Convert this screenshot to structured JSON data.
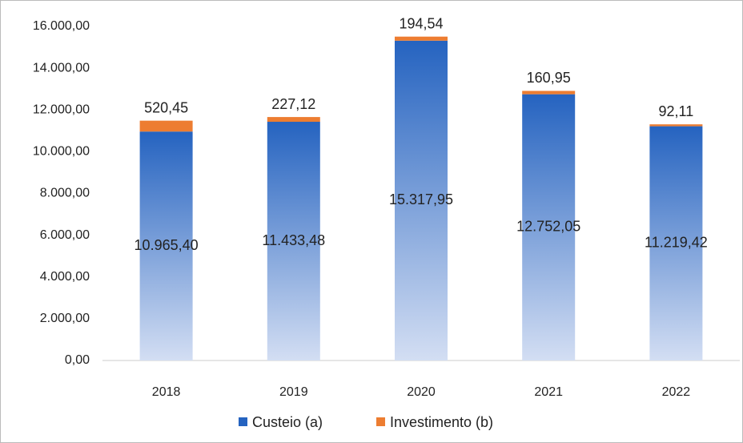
{
  "chart_data": {
    "type": "stacked_bar",
    "categories": [
      "2018",
      "2019",
      "2020",
      "2021",
      "2022"
    ],
    "series": [
      {
        "name": "Custeio (a)",
        "color": "#2563c0",
        "values": [
          10965.4,
          11433.48,
          15317.95,
          12752.05,
          11219.42
        ],
        "value_labels": [
          "10.965,40",
          "11.433,48",
          "15.317,95",
          "12.752,05",
          "11.219,42"
        ]
      },
      {
        "name": "Investimento (b)",
        "color": "#ed7d31",
        "values": [
          520.45,
          227.12,
          194.54,
          160.95,
          92.11
        ],
        "value_labels": [
          "520,45",
          "227,12",
          "194,54",
          "160,95",
          "92,11"
        ]
      }
    ],
    "ylim": [
      0,
      16000
    ],
    "yticks": [
      {
        "value": 0,
        "label": "0,00"
      },
      {
        "value": 2000,
        "label": "2.000,00"
      },
      {
        "value": 4000,
        "label": "4.000,00"
      },
      {
        "value": 6000,
        "label": "6.000,00"
      },
      {
        "value": 8000,
        "label": "8.000,00"
      },
      {
        "value": 10000,
        "label": "10.000,00"
      },
      {
        "value": 12000,
        "label": "12.000,00"
      },
      {
        "value": 14000,
        "label": "14.000,00"
      },
      {
        "value": 16000,
        "label": "16.000,00"
      }
    ],
    "grid": false,
    "legend": "bottom"
  }
}
